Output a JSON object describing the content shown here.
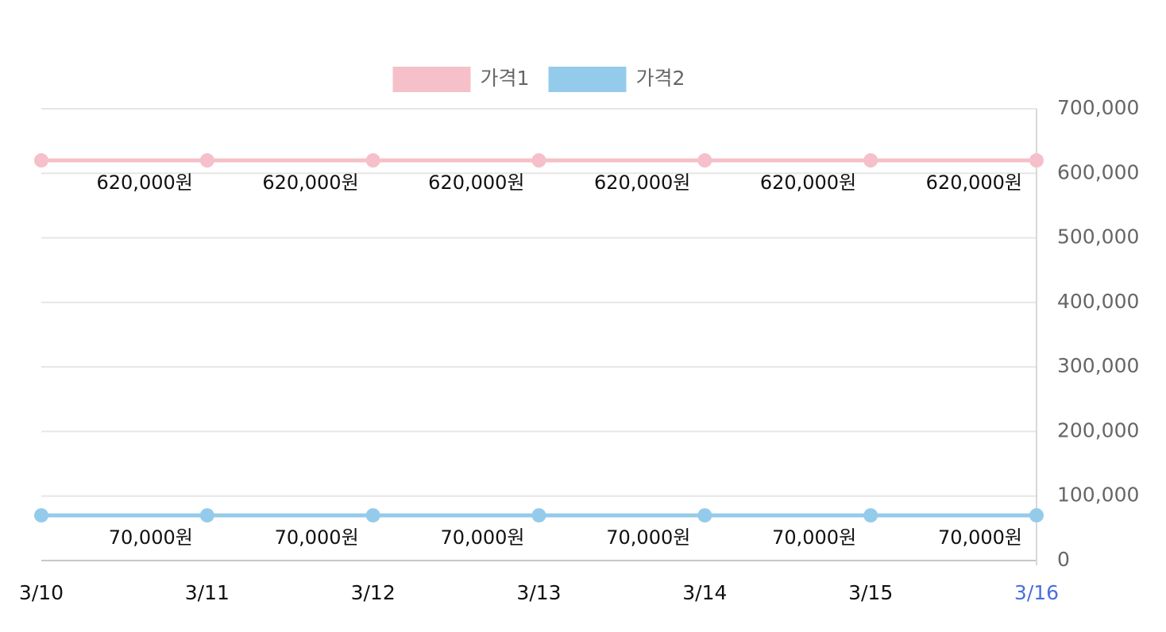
{
  "chart_data": {
    "type": "line",
    "categories": [
      "3/10",
      "3/11",
      "3/12",
      "3/13",
      "3/14",
      "3/15",
      "3/16"
    ],
    "series": [
      {
        "name": "가격1",
        "color": "#f5c0c9",
        "values": [
          620000,
          620000,
          620000,
          620000,
          620000,
          620000,
          620000
        ],
        "value_labels": [
          null,
          "620,000원",
          "620,000원",
          "620,000원",
          "620,000원",
          "620,000원",
          "620,000원"
        ]
      },
      {
        "name": "가격2",
        "color": "#95cbea",
        "values": [
          70000,
          70000,
          70000,
          70000,
          70000,
          70000,
          70000
        ],
        "value_labels": [
          null,
          "70,000원",
          "70,000원",
          "70,000원",
          "70,000원",
          "70,000원",
          "70,000원"
        ]
      }
    ],
    "ylim": [
      0,
      700000
    ],
    "yticks": [
      0,
      {
        "value": 100000,
        "label": "100,000"
      },
      {
        "value": 200000,
        "label": "200,000"
      },
      {
        "value": 300000,
        "label": "300,000"
      },
      {
        "value": 400000,
        "label": "400,000"
      },
      {
        "value": 500000,
        "label": "500,000"
      },
      {
        "value": 600000,
        "label": "600,000"
      },
      {
        "value": 700000,
        "label": "700,000"
      }
    ],
    "grid": true,
    "legend": "top",
    "y_axis_side": "right",
    "highlight": {
      "index": 6,
      "color": "#4a6fdc"
    }
  }
}
